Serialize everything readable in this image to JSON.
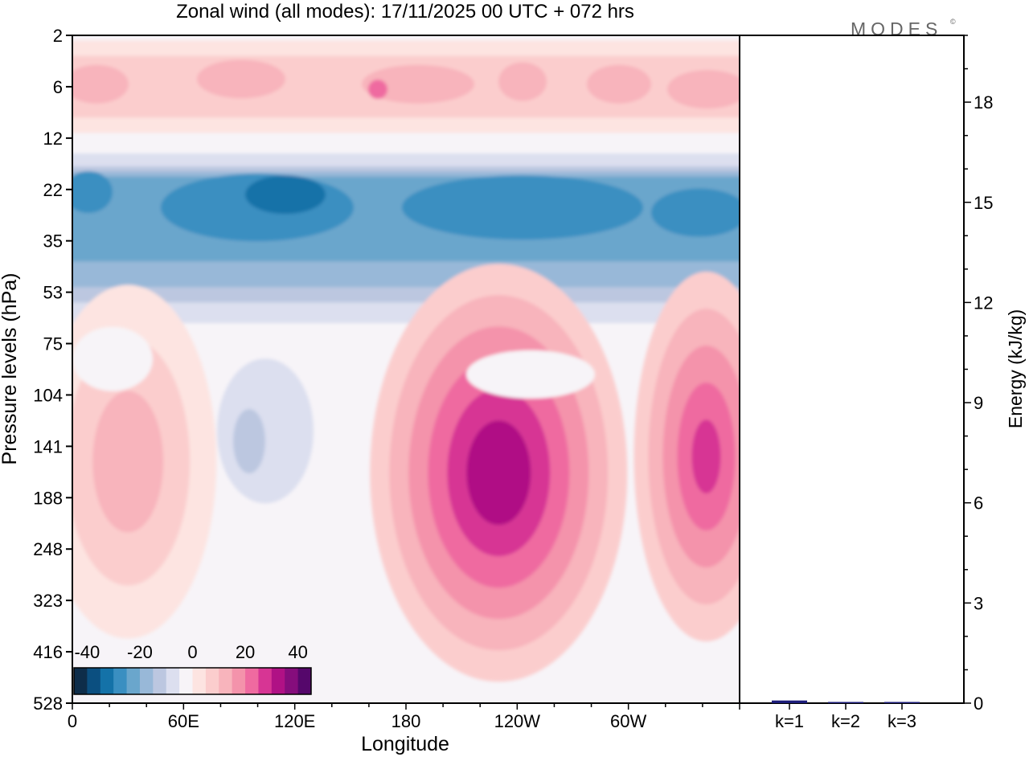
{
  "chart_data": [
    {
      "type": "heatmap",
      "title": "Zonal wind (all modes):  17/11/2025  00 UTC  + 072 hrs",
      "xlabel": "Longitude",
      "ylabel": "Pressure levels (hPa)",
      "x_ticks": [
        "0",
        "60E",
        "120E",
        "180",
        "120W",
        "60W"
      ],
      "x_tick_lon_east": [
        0,
        60,
        120,
        180,
        240,
        300
      ],
      "x_range": [
        0,
        360
      ],
      "y_levels": [
        "2",
        "6",
        "12",
        "22",
        "35",
        "53",
        "75",
        "104",
        "141",
        "188",
        "248",
        "323",
        "416",
        "528"
      ],
      "colorbar": {
        "ticks": [
          "-40",
          "-20",
          "0",
          "20",
          "40"
        ],
        "tick_values": [
          -40,
          -20,
          0,
          20,
          40
        ],
        "levels": [
          -45,
          -40,
          -35,
          -30,
          -25,
          -20,
          -15,
          -10,
          -5,
          0,
          5,
          10,
          15,
          20,
          25,
          30,
          35,
          40,
          45
        ],
        "colors": [
          "#0e2d4a",
          "#0b4f80",
          "#1472a8",
          "#3a8fc1",
          "#6aa6cc",
          "#98b8d8",
          "#bcc7e0",
          "#dcdfef",
          "#f7f4f8",
          "#fde4e1",
          "#fbcdcd",
          "#f8b4bc",
          "#f493ab",
          "#ef6aa0",
          "#d73594",
          "#b01185",
          "#850d7c",
          "#55076b"
        ]
      },
      "features": [
        {
          "label": "easterly band",
          "lon_range": [
            0,
            360
          ],
          "level_range": [
            "17",
            "45"
          ],
          "peak_u": -33
        },
        {
          "label": "westerly jet",
          "lon_center": 230,
          "level_center": "150",
          "peak_u": 33
        },
        {
          "label": "westerly jet",
          "lon_center": 342,
          "level_center": "141",
          "peak_u": 27
        },
        {
          "label": "westerly maximum",
          "lon_center": 30,
          "level_center": "141",
          "peak_u": 13
        },
        {
          "label": "upper westerlies",
          "lon_range": [
            0,
            360
          ],
          "level_range": [
            "4",
            "9"
          ],
          "peak_u": 18
        }
      ]
    },
    {
      "type": "bar",
      "ylabel": "Energy (kJ/kg)",
      "ylim": [
        0,
        20
      ],
      "y_ticks": [
        "0",
        "3",
        "6",
        "9",
        "12",
        "15",
        "18"
      ],
      "categories": [
        "k=1",
        "k=2",
        "k=3"
      ],
      "values": [
        0.08,
        0.03,
        0.03
      ],
      "bar_color": "#1d1d7a"
    }
  ],
  "logo": {
    "text": "MODES",
    "mark": "©"
  }
}
